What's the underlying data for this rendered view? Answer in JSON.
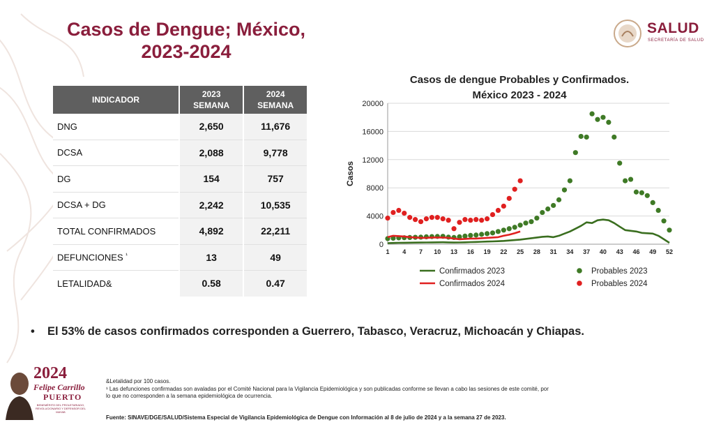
{
  "header": {
    "title_line1": "Casos de Dengue; México,",
    "title_line2": "2023-2024",
    "logo_text": "SALUD",
    "logo_sub": "SECRETARÍA DE SALUD"
  },
  "table": {
    "headers": {
      "indicator": "INDICADOR",
      "col2023_year": "2023",
      "col2023_sub": "SEMANA",
      "col2024_year": "2024",
      "col2024_sub": "SEMANA"
    },
    "rows": [
      {
        "label": "DNG",
        "sup": "",
        "v2023": "2,650",
        "v2024": "11,676"
      },
      {
        "label": "DCSA",
        "sup": "",
        "v2023": "2,088",
        "v2024": "9,778"
      },
      {
        "label": "DG",
        "sup": "",
        "v2023": "154",
        "v2024": "757"
      },
      {
        "label": "DCSA + DG",
        "sup": "",
        "v2023": "2,242",
        "v2024": "10,535"
      },
      {
        "label": "TOTAL CONFIRMADOS",
        "sup": "",
        "v2023": "4,892",
        "v2024": "22,211"
      },
      {
        "label": "DEFUNCIONES",
        "sup": "¹",
        "v2023": "13",
        "v2024": "49"
      },
      {
        "label": "LETALIDAD",
        "sup": "&",
        "v2023": "0.58",
        "v2024": "0.47"
      }
    ]
  },
  "chart_data": {
    "type": "line",
    "title_line1": "Casos de dengue Probables y Confirmados.",
    "title_line2": "México 2023 - 2024",
    "ylabel": "Casos",
    "ylim": [
      0,
      20000
    ],
    "yticks": [
      "0",
      "4000",
      "8000",
      "12000",
      "16000",
      "20000"
    ],
    "xticks": [
      "1",
      "4",
      "7",
      "10",
      "13",
      "16",
      "19",
      "22",
      "25",
      "28",
      "31",
      "34",
      "37",
      "40",
      "43",
      "46",
      "49",
      "52"
    ],
    "xlim": [
      1,
      52
    ],
    "series": [
      {
        "name": "Confirmados 2023",
        "style": "line",
        "color": "#3a6e1f",
        "x": [
          1,
          2,
          3,
          4,
          5,
          6,
          7,
          8,
          9,
          10,
          11,
          12,
          13,
          14,
          15,
          16,
          17,
          18,
          19,
          20,
          21,
          22,
          23,
          24,
          25,
          26,
          27,
          28,
          29,
          30,
          31,
          32,
          33,
          34,
          35,
          36,
          37,
          38,
          39,
          40,
          41,
          42,
          43,
          44,
          45,
          46,
          47,
          48,
          49,
          50,
          51,
          52
        ],
        "y": [
          150,
          180,
          200,
          210,
          220,
          230,
          240,
          250,
          260,
          270,
          280,
          260,
          240,
          250,
          270,
          300,
          320,
          350,
          380,
          400,
          430,
          470,
          520,
          580,
          650,
          750,
          850,
          950,
          1050,
          1100,
          1000,
          1200,
          1500,
          1800,
          2200,
          2600,
          3100,
          3000,
          3400,
          3500,
          3400,
          3000,
          2500,
          2000,
          1900,
          1800,
          1600,
          1550,
          1500,
          1200,
          700,
          200
        ]
      },
      {
        "name": "Probables 2023",
        "style": "points",
        "color": "#3f7a26",
        "x": [
          1,
          2,
          3,
          4,
          5,
          6,
          7,
          8,
          9,
          10,
          11,
          12,
          13,
          14,
          15,
          16,
          17,
          18,
          19,
          20,
          21,
          22,
          23,
          24,
          25,
          26,
          27,
          28,
          29,
          30,
          31,
          32,
          33,
          34,
          35,
          36,
          37,
          38,
          39,
          40,
          41,
          42,
          43,
          44,
          45,
          46,
          47,
          48,
          49,
          50,
          51,
          52
        ],
        "y": [
          800,
          850,
          900,
          920,
          950,
          980,
          1000,
          1050,
          1080,
          1100,
          1120,
          1000,
          950,
          1050,
          1150,
          1250,
          1300,
          1400,
          1500,
          1600,
          1800,
          2000,
          2200,
          2400,
          2700,
          3000,
          3200,
          3700,
          4500,
          5000,
          5500,
          6300,
          7700,
          9000,
          13000,
          15300,
          15200,
          18500,
          17700,
          18000,
          17300,
          15200,
          11500,
          9000,
          9200,
          7400,
          7300,
          6900,
          5900,
          4800,
          3300,
          2000
        ]
      },
      {
        "name": "Confirmados 2024",
        "style": "line",
        "color": "#e02020",
        "x": [
          1,
          2,
          3,
          4,
          5,
          6,
          7,
          8,
          9,
          10,
          11,
          12,
          13,
          14,
          15,
          16,
          17,
          18,
          19,
          20,
          21,
          22,
          23,
          24,
          25
        ],
        "y": [
          1000,
          1200,
          1150,
          1100,
          1000,
          950,
          900,
          900,
          950,
          950,
          950,
          900,
          800,
          700,
          750,
          800,
          800,
          850,
          900,
          950,
          1000,
          1200,
          1350,
          1550,
          1800
        ]
      },
      {
        "name": "Probables 2024",
        "style": "points",
        "color": "#e02020",
        "x": [
          1,
          2,
          3,
          4,
          5,
          6,
          7,
          8,
          9,
          10,
          11,
          12,
          13,
          14,
          15,
          16,
          17,
          18,
          19,
          20,
          21,
          22,
          23,
          24,
          25
        ],
        "y": [
          3700,
          4500,
          4800,
          4400,
          3800,
          3500,
          3200,
          3600,
          3800,
          3800,
          3600,
          3400,
          2200,
          3100,
          3500,
          3400,
          3500,
          3400,
          3600,
          4200,
          4800,
          5400,
          6500,
          7800,
          9000
        ]
      }
    ],
    "legend_placement": "bottom"
  },
  "bullet": "El 53% de casos confirmados corresponden a Guerrero, Tabasco, Veracruz, Michoacán y Chiapas.",
  "notes": {
    "line1": "&Letalidad por 100 casos.",
    "line2": "¹ Las defunciones confirmadas son avaladas por el Comité Nacional para la Vigilancia Epidemiológica y son publicadas conforme se llevan a cabo las sesiones de este comité, por",
    "line3": "lo que no corresponden a la semana epidemiológica de ocurrencia."
  },
  "source": "Fuente: SINAVE/DGE/SALUD/Sistema Especial de Vigilancia Epidemiológica de Dengue con Información al 8 de julio de 2024 y a la semana 27 de 2023.",
  "footer_logo": {
    "year": "2024",
    "name": "Felipe Carrillo",
    "place": "PUERTO",
    "tagline": "BENEMÉRITO DEL PROLETARIADO, REVOLUCIONARIO Y DEFENSOR DEL MAYAB"
  },
  "colors": {
    "brand": "#8a1e3c",
    "table_header": "#5f5f5f",
    "confirmados_2023": "#3a6e1f",
    "probables_2023": "#3f7a26",
    "series_2024": "#e02020"
  }
}
